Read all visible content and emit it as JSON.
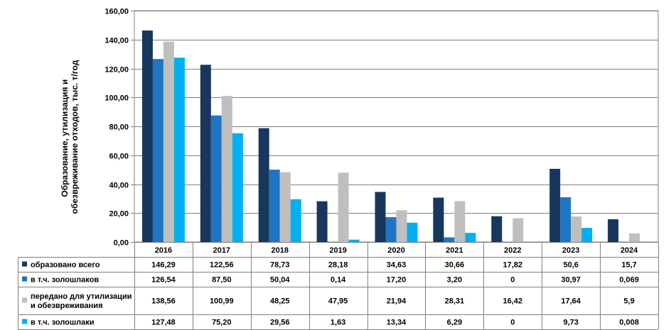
{
  "chart_data": {
    "type": "bar",
    "ylabel_lines": [
      "Образование, утилизация и",
      "обезвреживание отходов, тыс. т/год"
    ],
    "ylim": [
      0,
      160
    ],
    "yticks": [
      0,
      20,
      40,
      60,
      80,
      100,
      120,
      140,
      160
    ],
    "ytick_labels": [
      "0,00",
      "20,00",
      "40,00",
      "60,00",
      "80,00",
      "100,00",
      "120,00",
      "140,00",
      "160,00"
    ],
    "grid": true,
    "categories": [
      "2016",
      "2017",
      "2018",
      "2019",
      "2020",
      "2021",
      "2022",
      "2023",
      "2024"
    ],
    "series": [
      {
        "name": "образовано всего",
        "name_lines": [
          "образовано всего"
        ],
        "color": "#17375E",
        "values": [
          146.29,
          122.56,
          78.73,
          28.18,
          34.63,
          30.66,
          17.82,
          50.6,
          15.7
        ],
        "labels": [
          "146,29",
          "122,56",
          "78,73",
          "28,18",
          "34,63",
          "30,66",
          "17,82",
          "50,6",
          "15,7"
        ]
      },
      {
        "name": "в т.ч. золошлаков",
        "name_lines": [
          "в т.ч. золошлаков"
        ],
        "color": "#1F75C4",
        "values": [
          126.54,
          87.5,
          50.04,
          0.14,
          17.2,
          3.2,
          0,
          30.97,
          0.069
        ],
        "labels": [
          "126,54",
          "87,50",
          "50,04",
          "0,14",
          "17,20",
          "3,20",
          "0",
          "30,97",
          "0,069"
        ]
      },
      {
        "name": "передано для утилизации и обезвреживания",
        "name_lines": [
          "передано для утилизации",
          "и обезвреживания"
        ],
        "color": "#BFBFBF",
        "values": [
          138.56,
          100.99,
          48.25,
          47.95,
          21.94,
          28.31,
          16.42,
          17.64,
          5.9
        ],
        "labels": [
          "138,56",
          "100,99",
          "48,25",
          "47,95",
          "21,94",
          "28,31",
          "16,42",
          "17,64",
          "5,9"
        ]
      },
      {
        "name": "в т.ч. золошлаки",
        "name_lines": [
          "в т.ч. золошлаки"
        ],
        "color": "#00B0F0",
        "values": [
          127.48,
          75.2,
          29.56,
          1.63,
          13.34,
          6.29,
          0,
          9.73,
          0.008
        ],
        "labels": [
          "127,48",
          "75,20",
          "29,56",
          "1,63",
          "13,34",
          "6,29",
          "0",
          "9,73",
          "0,008"
        ]
      }
    ]
  }
}
